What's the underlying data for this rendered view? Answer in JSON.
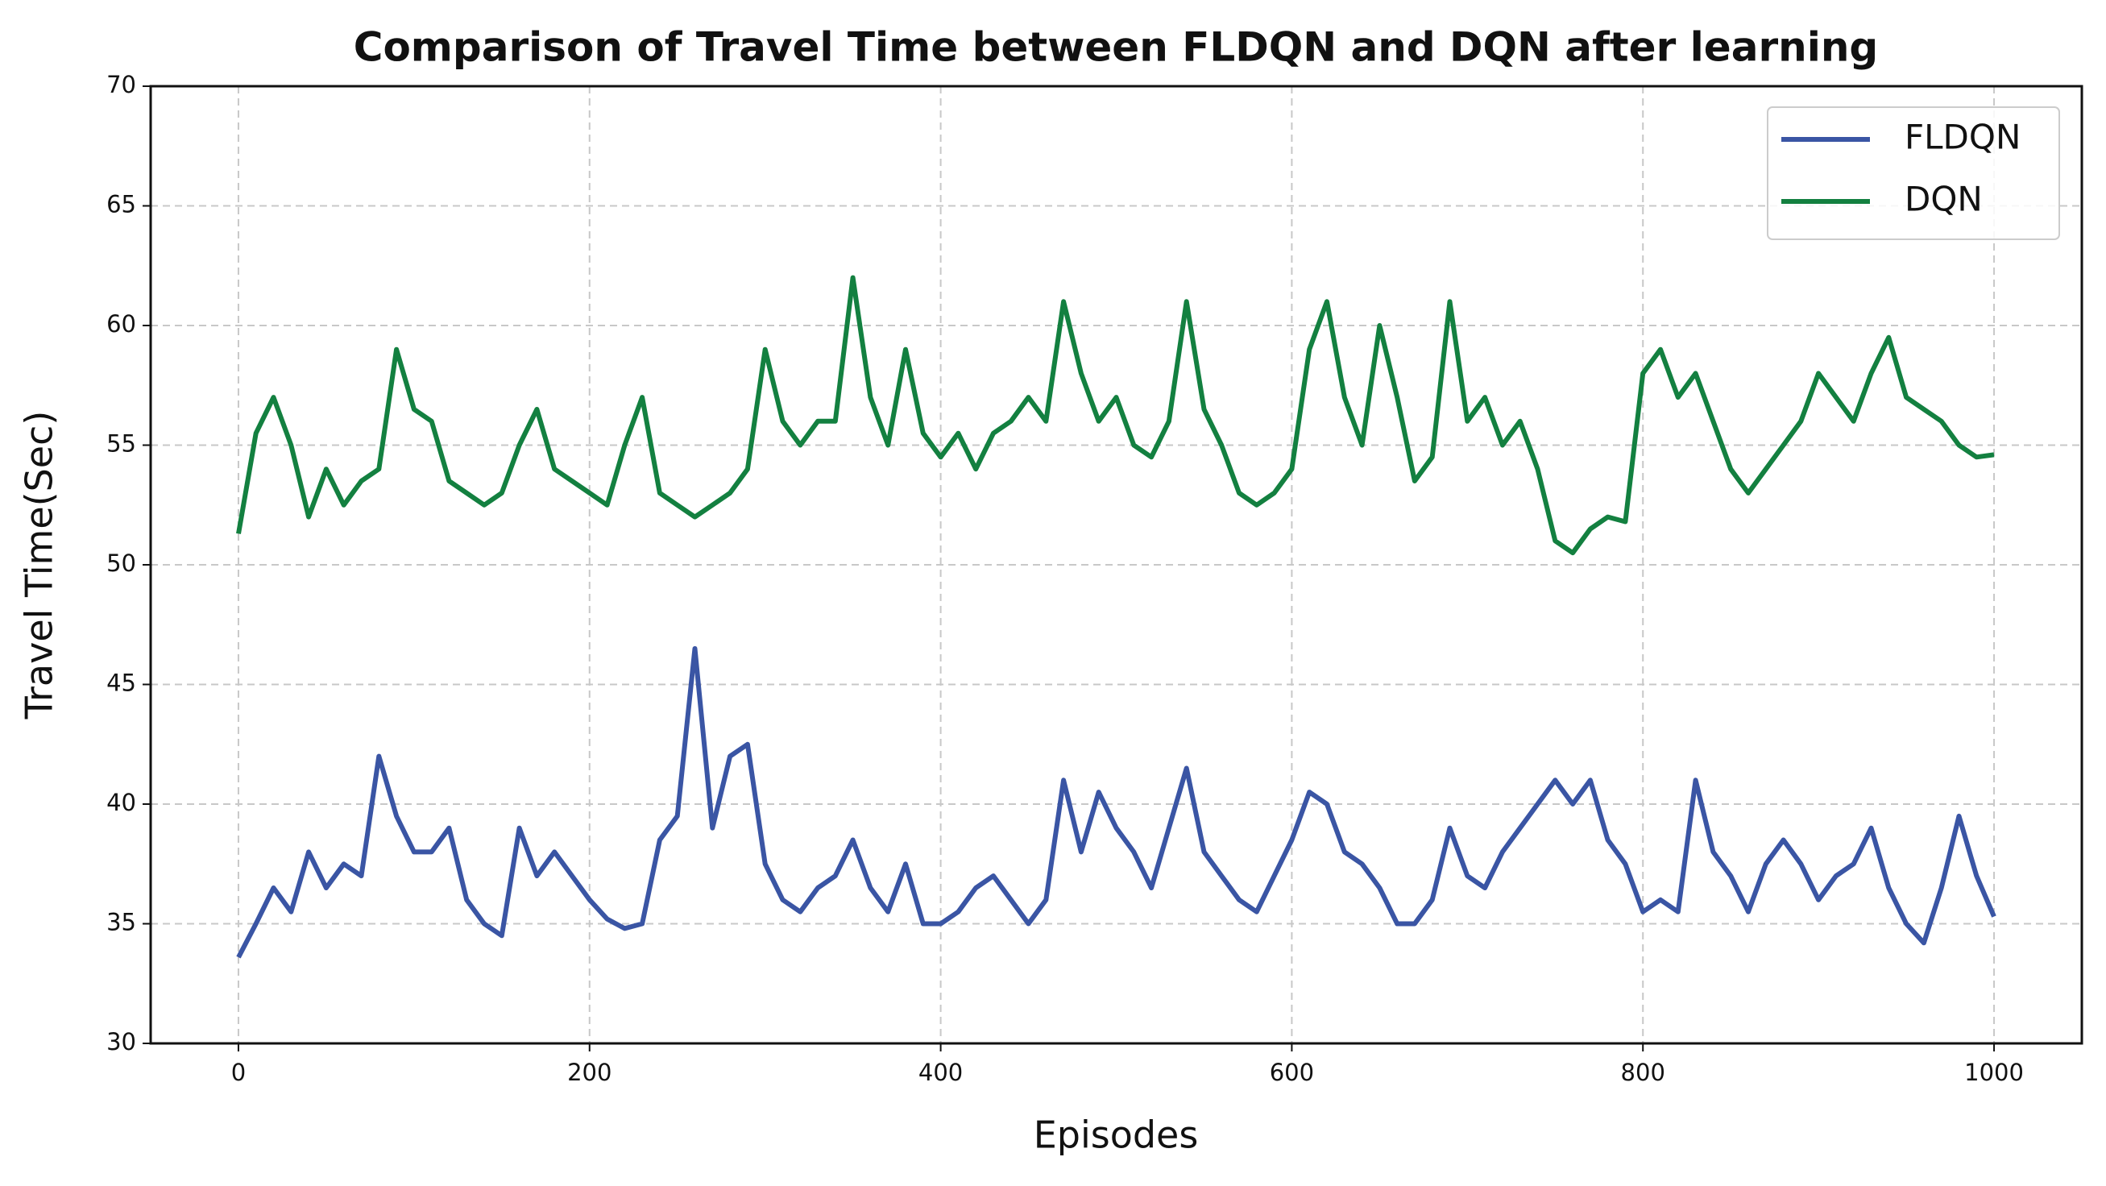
{
  "chart_data": {
    "type": "line",
    "title": "Comparison of Travel Time between FLDQN and DQN after learning",
    "xlabel": "Episodes",
    "ylabel": "Travel Time(Sec)",
    "x": [
      0,
      10,
      20,
      30,
      40,
      50,
      60,
      70,
      80,
      90,
      100,
      110,
      120,
      130,
      140,
      150,
      160,
      170,
      180,
      190,
      200,
      210,
      220,
      230,
      240,
      250,
      260,
      270,
      280,
      290,
      300,
      310,
      320,
      330,
      340,
      350,
      360,
      370,
      380,
      390,
      400,
      410,
      420,
      430,
      440,
      450,
      460,
      470,
      480,
      490,
      500,
      510,
      520,
      530,
      540,
      550,
      560,
      570,
      580,
      590,
      600,
      610,
      620,
      630,
      640,
      650,
      660,
      670,
      680,
      690,
      700,
      710,
      720,
      730,
      740,
      750,
      760,
      770,
      780,
      790,
      800,
      810,
      820,
      830,
      840,
      850,
      860,
      870,
      880,
      890,
      900,
      910,
      920,
      930,
      940,
      950,
      960,
      970,
      980,
      990,
      1000
    ],
    "series": [
      {
        "name": "FLDQN",
        "color": "#3a55a4",
        "values": [
          33.6,
          35,
          36.5,
          35.5,
          38,
          36.5,
          37.5,
          37,
          42,
          39.5,
          38,
          38,
          39,
          36,
          35,
          34.5,
          39,
          37,
          38,
          37,
          36,
          35.2,
          34.8,
          35,
          38.5,
          39.5,
          46.5,
          39,
          42,
          42.5,
          37.5,
          36,
          35.5,
          36.5,
          37,
          38.5,
          36.5,
          35.5,
          37.5,
          35,
          35,
          35.5,
          36.5,
          37,
          36,
          35,
          36,
          41,
          38,
          40.5,
          39,
          38,
          36.5,
          39,
          41.5,
          38,
          37,
          36,
          35.5,
          37,
          38.5,
          40.5,
          40,
          38,
          37.5,
          36.5,
          35,
          35,
          36,
          39,
          37,
          36.5,
          38,
          39,
          40,
          41,
          40,
          41,
          38.5,
          37.5,
          35.5,
          36,
          35.5,
          41,
          38,
          37,
          35.5,
          37.5,
          38.5,
          37.5,
          36,
          37,
          37.5,
          39,
          36.5,
          35,
          34.2,
          36.5,
          39.5,
          37,
          35.3
        ]
      },
      {
        "name": "DQN",
        "color": "#138040",
        "values": [
          51.3,
          55.5,
          57,
          55,
          52,
          54,
          52.5,
          53.5,
          54,
          59,
          56.5,
          56,
          53.5,
          53,
          52.5,
          53,
          55,
          56.5,
          54,
          53.5,
          53,
          52.5,
          55,
          57,
          53,
          52.5,
          52,
          52.5,
          53,
          54,
          59,
          56,
          55,
          56,
          56,
          62,
          57,
          55,
          59,
          55.5,
          54.5,
          55.5,
          54,
          55.5,
          56,
          57,
          56,
          61,
          58,
          56,
          57,
          55,
          54.5,
          56,
          61,
          56.5,
          55,
          53,
          52.5,
          53,
          54,
          59,
          61,
          57,
          55,
          60,
          57,
          53.5,
          54.5,
          61,
          56,
          57,
          55,
          56,
          54,
          51,
          50.5,
          51.5,
          52,
          51.8,
          58,
          59,
          57,
          58,
          56,
          54,
          53,
          54,
          55,
          56,
          58,
          57,
          56,
          58,
          59.5,
          57,
          56.5,
          56,
          55,
          54.5,
          54.6
        ]
      }
    ],
    "xlim": [
      -50,
      1050
    ],
    "ylim": [
      30,
      70
    ],
    "xticks": [
      0,
      200,
      400,
      600,
      800,
      1000
    ],
    "yticks": [
      30,
      35,
      40,
      45,
      50,
      55,
      60,
      65,
      70
    ],
    "grid": true,
    "legend": "upper right"
  }
}
